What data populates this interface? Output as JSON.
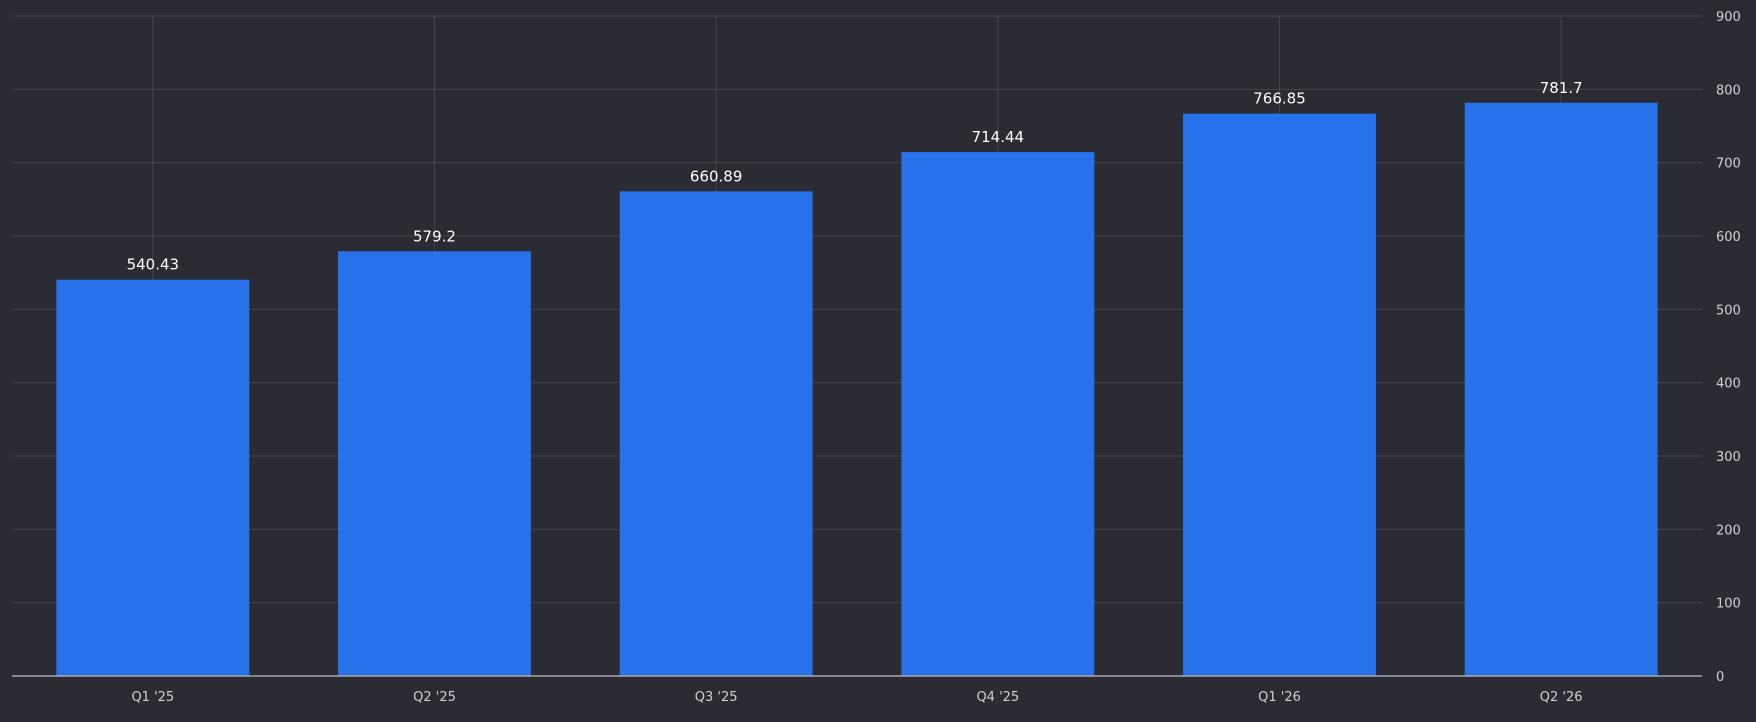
{
  "chart_data": {
    "type": "bar",
    "categories": [
      "Q1 '25",
      "Q2 '25",
      "Q3 '25",
      "Q4 '25",
      "Q1 '26",
      "Q2 '26"
    ],
    "values": [
      540.43,
      579.2,
      660.89,
      714.44,
      766.85,
      781.7
    ],
    "data_labels": [
      "540.43",
      "579.2",
      "660.89",
      "714.44",
      "766.85",
      "781.7"
    ],
    "title": "",
    "xlabel": "",
    "ylabel": "",
    "ylim": [
      0,
      900
    ],
    "y_ticks": [
      "0",
      "100",
      "200",
      "300",
      "400",
      "500",
      "600",
      "700",
      "800",
      "900"
    ],
    "y_axis_side": "right",
    "grid": true,
    "legend": "none",
    "bar_color": "#2771ea",
    "background_color": "#2b2b33"
  }
}
